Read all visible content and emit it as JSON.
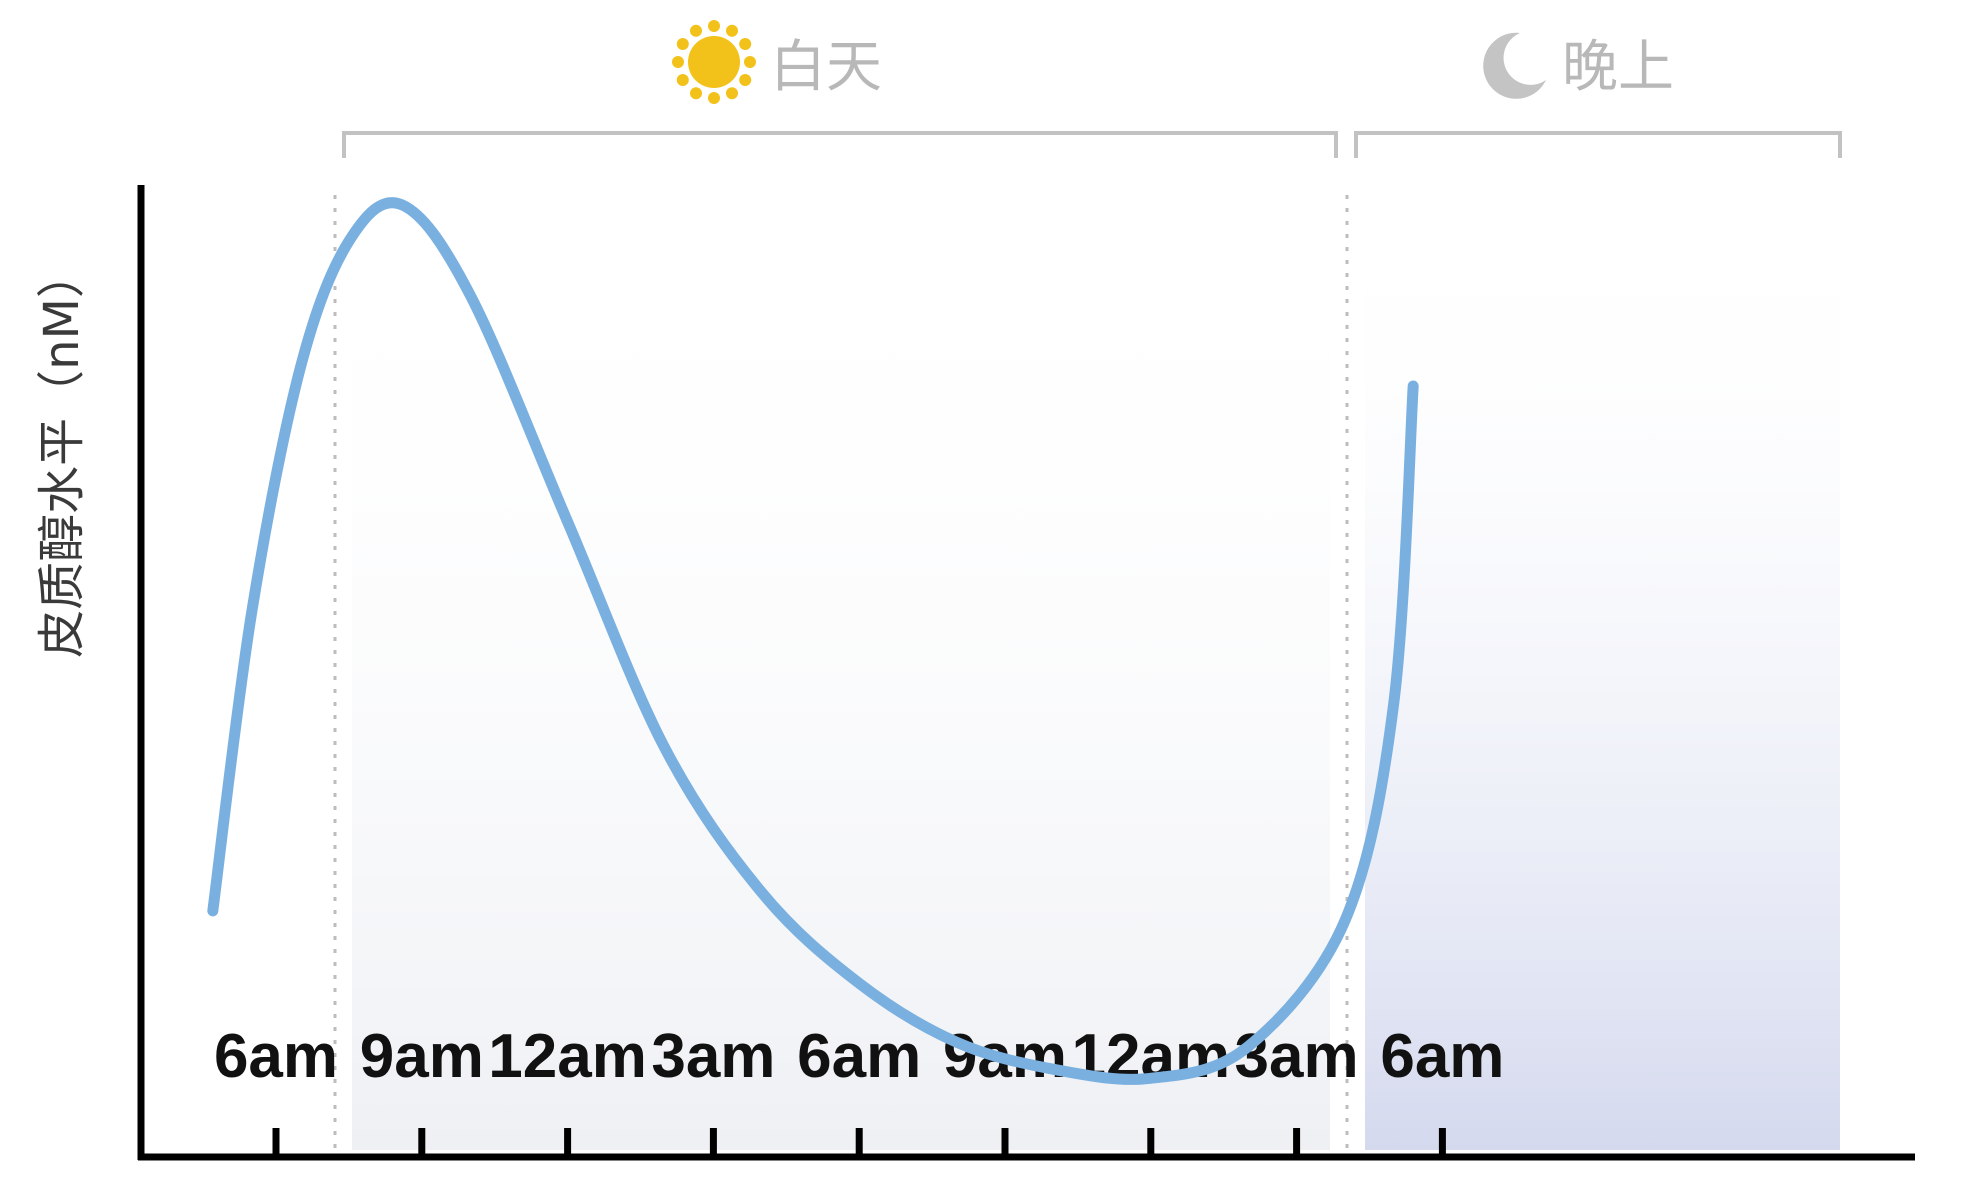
{
  "chart_data": {
    "type": "line",
    "title": "",
    "ylabel": "皮质醇水平（nM）",
    "xlabel": "",
    "categories": [
      "6am",
      "9am",
      "12am",
      "3am",
      "6am",
      "9am",
      "12am",
      "3am",
      "6am"
    ],
    "x_hours_from_start": [
      0,
      3,
      6,
      9,
      12,
      15,
      18,
      21,
      24
    ],
    "series": [
      {
        "color": "#7ab0e0",
        "points": [
          [
            -1.3,
            0.22
          ],
          [
            -0.5,
            0.55
          ],
          [
            0.5,
            0.82
          ],
          [
            1.5,
            0.96
          ],
          [
            2.6,
            1.0
          ],
          [
            4.0,
            0.9
          ],
          [
            6.0,
            0.65
          ],
          [
            8.0,
            0.4
          ],
          [
            10.0,
            0.24
          ],
          [
            12.0,
            0.14
          ],
          [
            14.0,
            0.075
          ],
          [
            16.0,
            0.045
          ],
          [
            18.0,
            0.035
          ],
          [
            20.0,
            0.07
          ],
          [
            22.0,
            0.21
          ],
          [
            23.0,
            0.45
          ],
          [
            23.4,
            0.8
          ]
        ]
      }
    ],
    "ylim": [
      0,
      1
    ],
    "grid": false,
    "periods": [
      {
        "label": "白天",
        "icon": "sun-icon",
        "color": "#f2c21b"
      },
      {
        "label": "晚上",
        "icon": "moon-icon",
        "color": "#c4c4c4"
      }
    ]
  }
}
